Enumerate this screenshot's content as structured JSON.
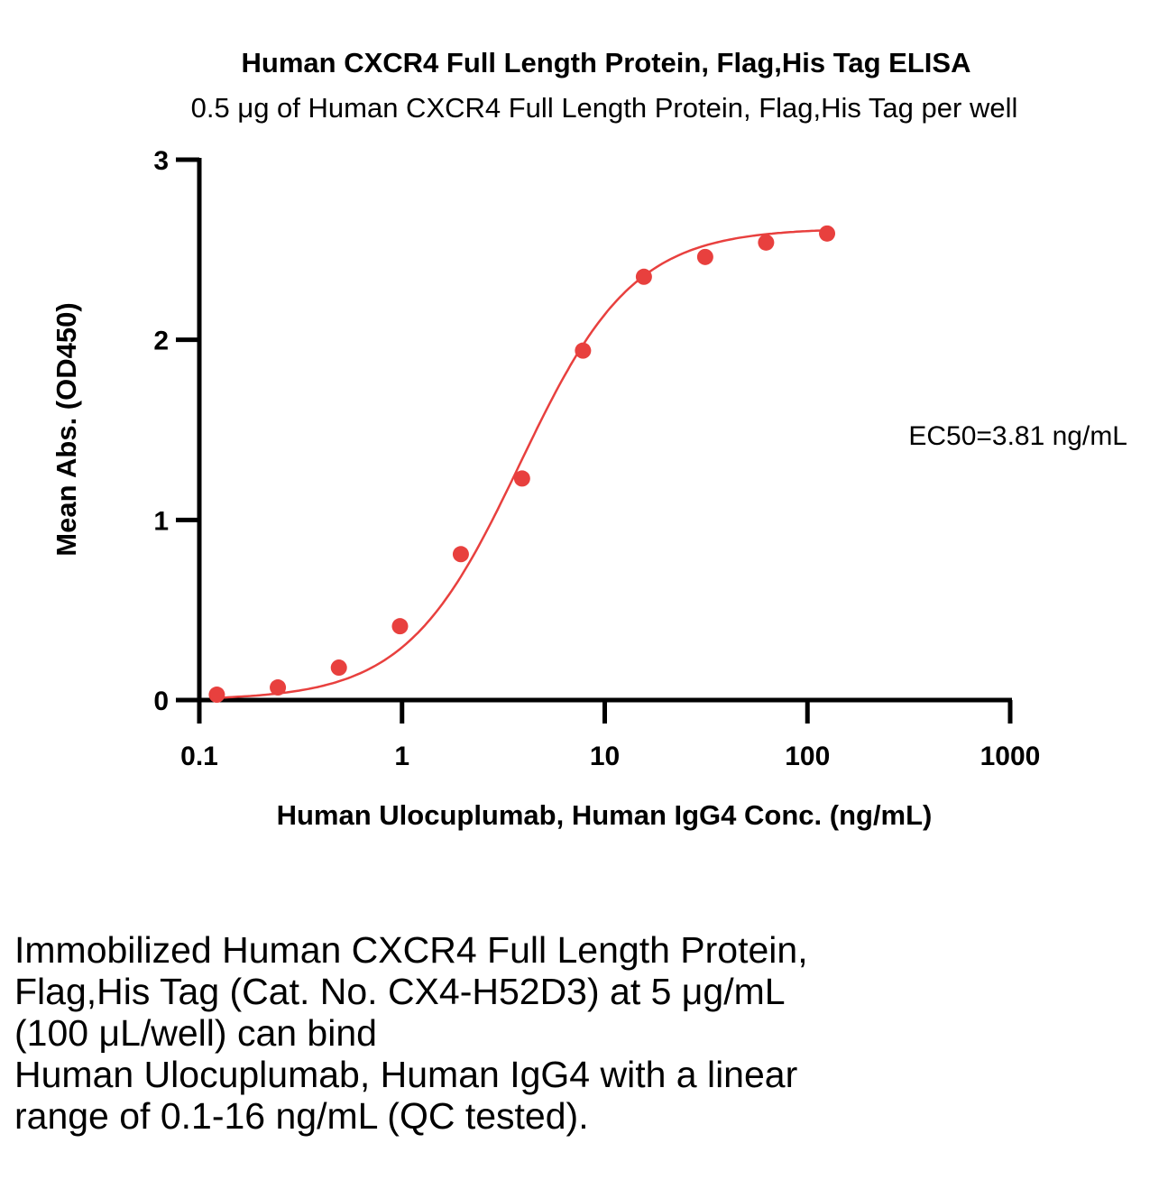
{
  "chart_data": {
    "type": "scatter",
    "title": "Human CXCR4 Full Length Protein, Flag,His Tag ELISA",
    "subtitle": "0.5 μg of Human CXCR4 Full Length Protein, Flag,His Tag per well",
    "xlabel": "Human Ulocuplumab, Human IgG4 Conc. (ng/mL)",
    "ylabel": "Mean Abs. (OD450)",
    "x_scale": "log",
    "xlim": [
      0.1,
      1000
    ],
    "ylim": [
      0,
      3
    ],
    "x_ticks": [
      "0.1",
      "1",
      "10",
      "100",
      "1000"
    ],
    "y_ticks": [
      "0",
      "1",
      "2",
      "3"
    ],
    "grid": false,
    "color": "#e8403e",
    "series": [
      {
        "x": [
          0.122,
          0.244,
          0.488,
          0.977,
          1.95,
          3.91,
          7.81,
          15.6,
          31.3,
          62.5,
          125
        ],
        "y": [
          0.03,
          0.07,
          0.18,
          0.41,
          0.81,
          1.23,
          1.94,
          2.35,
          2.46,
          2.54,
          2.59
        ]
      }
    ],
    "fit": {
      "bottom": 0.0,
      "top": 2.62,
      "ec50": 3.81,
      "hill": 1.55
    },
    "annotation": "EC50=3.81 ng/mL"
  },
  "caption": [
    "Immobilized Human CXCR4 Full Length Protein,",
    "Flag,His Tag (Cat. No. CX4-H52D3) at 5 μg/mL",
    "(100 μL/well) can bind",
    "Human Ulocuplumab, Human IgG4 with a linear",
    "range of 0.1-16 ng/mL (QC tested)."
  ]
}
